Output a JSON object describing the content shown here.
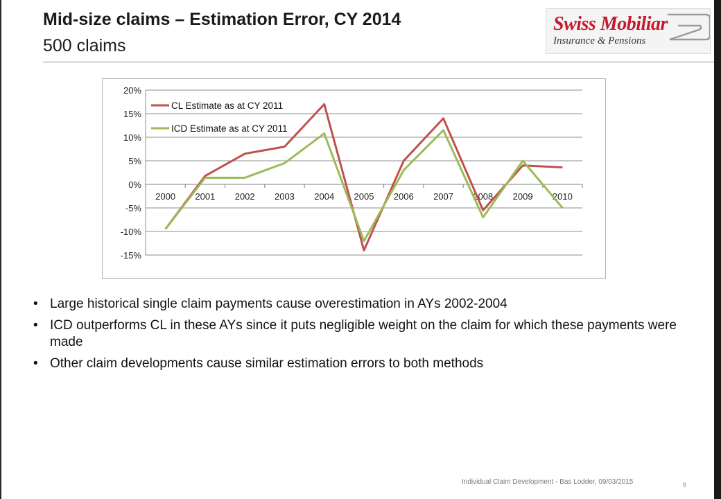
{
  "slide": {
    "title": "Mid-size claims – Estimation Error, CY 2014",
    "subtitle": "500 claims",
    "footer": "Individual Claim Development - Bas Lodder, 09/03/2015",
    "page_number": "8"
  },
  "logo": {
    "brand": "Swiss Mobiliar",
    "tagline": "Insurance & Pensions",
    "brand_color": "#c41a2c"
  },
  "bullets": [
    "Large historical single claim payments cause overestimation in AYs 2002-2004",
    "ICD outperforms CL in these AYs since it puts negligible weight on the claim for which these payments were made",
    "Other claim developments cause similar estimation errors to both methods"
  ],
  "chart_data": {
    "type": "line",
    "title": "",
    "xlabel": "",
    "ylabel": "",
    "categories": [
      "2000",
      "2001",
      "2002",
      "2003",
      "2004",
      "2005",
      "2006",
      "2007",
      "2008",
      "2009",
      "2010"
    ],
    "series": [
      {
        "name": "CL Estimate as at CY 2011",
        "color": "#c0504d",
        "values": [
          -9.5,
          1.8,
          6.5,
          8.0,
          17.0,
          -14.0,
          5.0,
          14.0,
          -5.5,
          4.0,
          3.6
        ]
      },
      {
        "name": "ICD Estimate as at CY 2011",
        "color": "#9bbb59",
        "values": [
          -9.5,
          1.4,
          1.4,
          4.5,
          10.8,
          -12.0,
          3.0,
          11.5,
          -7.0,
          5.0,
          -5.0
        ]
      }
    ],
    "ylim": [
      -15,
      20
    ],
    "yticks": [
      20,
      15,
      10,
      5,
      0,
      -5,
      -10,
      -15
    ],
    "ytick_labels": [
      "20%",
      "15%",
      "10%",
      "5%",
      "0%",
      "-5%",
      "-10%",
      "-15%"
    ],
    "grid": true,
    "legend_position": "top-left"
  }
}
